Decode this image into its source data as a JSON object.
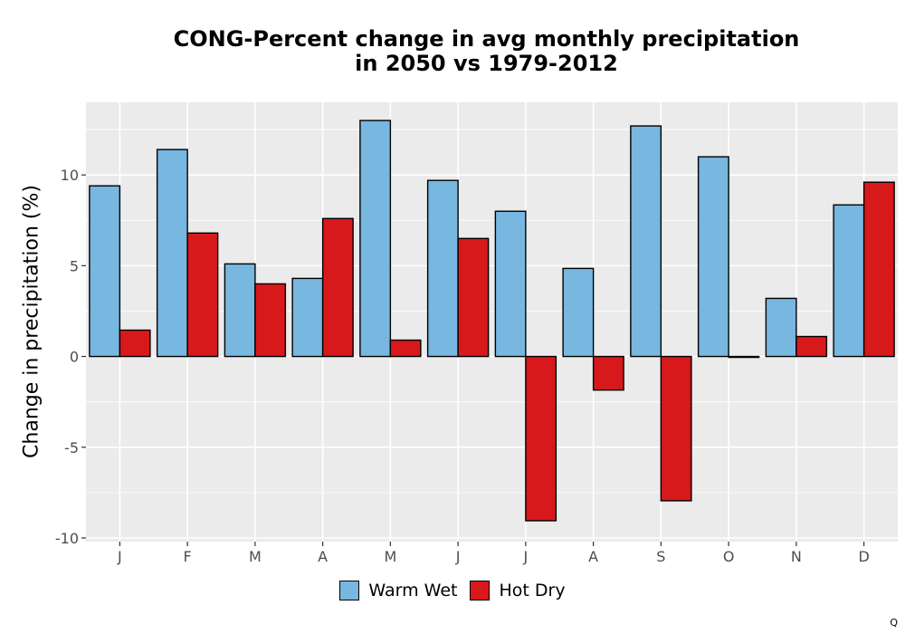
{
  "chart_data": {
    "type": "bar",
    "title_lines": [
      "CONG-Percent change in avg monthly precipitation",
      "in 2050 vs 1979-2012"
    ],
    "xlabel": "",
    "ylabel": "Change in precipitation (%)",
    "categories": [
      "J",
      "F",
      "M",
      "A",
      "M",
      "J",
      "J",
      "A",
      "S",
      "O",
      "N",
      "D"
    ],
    "series": [
      {
        "name": "Warm Wet",
        "color": "#77b7e0",
        "values": [
          9.4,
          11.4,
          5.1,
          4.3,
          13.0,
          9.7,
          8.0,
          4.85,
          12.7,
          11.0,
          3.2,
          8.35
        ]
      },
      {
        "name": "Hot Dry",
        "color": "#d7191c",
        "values": [
          1.45,
          6.8,
          4.0,
          7.6,
          0.9,
          6.5,
          -9.05,
          -1.85,
          -7.95,
          -0.05,
          1.1,
          9.6
        ]
      }
    ],
    "ylim": [
      -10.2,
      14.0
    ],
    "yticks": [
      -10,
      -5,
      0,
      5,
      10
    ],
    "ytick_labels": [
      "-10",
      "-5",
      "0",
      "5",
      "10"
    ],
    "grid": true,
    "legend_position": "bottom",
    "panel_color": "#ebebeb",
    "grid_color": "#ffffff"
  },
  "corner_text": "Q"
}
